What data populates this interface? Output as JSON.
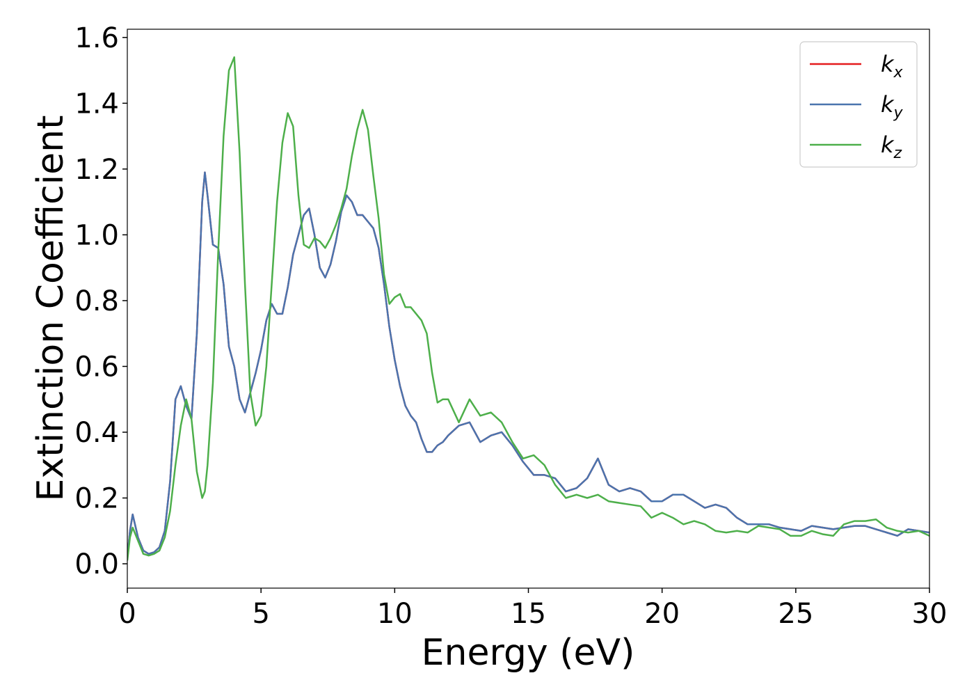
{
  "chart_data": {
    "type": "line",
    "xlabel": "Energy (eV)",
    "ylabel": "Extinction Coefficient",
    "xlim": [
      0,
      30
    ],
    "ylim": [
      -0.074,
      1.625
    ],
    "xticks": [
      0,
      5,
      10,
      15,
      20,
      25,
      30
    ],
    "yticks": [
      {
        "value": 0,
        "label": "0.0"
      },
      {
        "value": 0.2,
        "label": "0.2"
      },
      {
        "value": 0.4,
        "label": "0.4"
      },
      {
        "value": 0.6,
        "label": "0.6"
      },
      {
        "value": 0.8,
        "label": "0.8"
      },
      {
        "value": 1,
        "label": "1.0"
      },
      {
        "value": 1.2,
        "label": "1.2"
      },
      {
        "value": 1.4,
        "label": "1.4"
      },
      {
        "value": 1.6,
        "label": "1.6"
      }
    ],
    "legend": "upper right",
    "x": [
      0,
      0.1,
      0.2,
      0.4,
      0.6,
      0.8,
      1.0,
      1.2,
      1.4,
      1.6,
      1.8,
      2.0,
      2.2,
      2.4,
      2.6,
      2.8,
      2.9,
      3.0,
      3.2,
      3.4,
      3.6,
      3.8,
      4.0,
      4.2,
      4.4,
      4.6,
      4.8,
      5.0,
      5.2,
      5.4,
      5.6,
      5.8,
      6.0,
      6.2,
      6.4,
      6.6,
      6.8,
      7.0,
      7.2,
      7.4,
      7.6,
      7.8,
      8.0,
      8.2,
      8.4,
      8.6,
      8.8,
      9.0,
      9.2,
      9.4,
      9.6,
      9.8,
      10.0,
      10.2,
      10.4,
      10.6,
      10.8,
      11.0,
      11.2,
      11.4,
      11.6,
      11.8,
      12.0,
      12.4,
      12.8,
      13.2,
      13.6,
      14.0,
      14.4,
      14.8,
      15.2,
      15.6,
      16.0,
      16.4,
      16.8,
      17.2,
      17.6,
      18.0,
      18.4,
      18.8,
      19.2,
      19.6,
      20.0,
      20.4,
      20.8,
      21.2,
      21.6,
      22.0,
      22.4,
      22.8,
      23.2,
      23.6,
      24.0,
      24.4,
      24.8,
      25.2,
      25.6,
      26.0,
      26.4,
      26.8,
      27.2,
      27.6,
      28.0,
      28.4,
      28.8,
      29.2,
      29.6,
      30.0
    ],
    "series": [
      {
        "name": "kx",
        "color": "#e41a1c",
        "values": [
          0.02,
          0.1,
          0.15,
          0.08,
          0.04,
          0.03,
          0.035,
          0.05,
          0.1,
          0.25,
          0.5,
          0.54,
          0.48,
          0.44,
          0.7,
          1.1,
          1.19,
          1.12,
          0.97,
          0.96,
          0.85,
          0.66,
          0.6,
          0.5,
          0.46,
          0.52,
          0.58,
          0.65,
          0.74,
          0.79,
          0.76,
          0.76,
          0.84,
          0.94,
          1.0,
          1.06,
          1.08,
          1.0,
          0.9,
          0.87,
          0.91,
          0.98,
          1.07,
          1.12,
          1.1,
          1.06,
          1.06,
          1.04,
          1.02,
          0.96,
          0.85,
          0.72,
          0.62,
          0.54,
          0.48,
          0.45,
          0.43,
          0.38,
          0.34,
          0.34,
          0.36,
          0.37,
          0.39,
          0.42,
          0.43,
          0.37,
          0.39,
          0.4,
          0.36,
          0.31,
          0.27,
          0.27,
          0.26,
          0.22,
          0.23,
          0.26,
          0.32,
          0.24,
          0.22,
          0.23,
          0.22,
          0.19,
          0.19,
          0.21,
          0.21,
          0.19,
          0.17,
          0.18,
          0.17,
          0.14,
          0.12,
          0.12,
          0.12,
          0.11,
          0.105,
          0.1,
          0.115,
          0.11,
          0.105,
          0.11,
          0.115,
          0.115,
          0.105,
          0.095,
          0.085,
          0.105,
          0.1,
          0.095
        ]
      },
      {
        "name": "ky",
        "color": "#4a74ae",
        "values": [
          0.02,
          0.1,
          0.15,
          0.08,
          0.04,
          0.03,
          0.035,
          0.05,
          0.1,
          0.25,
          0.5,
          0.54,
          0.48,
          0.44,
          0.7,
          1.1,
          1.19,
          1.12,
          0.97,
          0.96,
          0.85,
          0.66,
          0.6,
          0.5,
          0.46,
          0.52,
          0.58,
          0.65,
          0.74,
          0.79,
          0.76,
          0.76,
          0.84,
          0.94,
          1.0,
          1.06,
          1.08,
          1.0,
          0.9,
          0.87,
          0.91,
          0.98,
          1.07,
          1.12,
          1.1,
          1.06,
          1.06,
          1.04,
          1.02,
          0.96,
          0.85,
          0.72,
          0.62,
          0.54,
          0.48,
          0.45,
          0.43,
          0.38,
          0.34,
          0.34,
          0.36,
          0.37,
          0.39,
          0.42,
          0.43,
          0.37,
          0.39,
          0.4,
          0.36,
          0.31,
          0.27,
          0.27,
          0.26,
          0.22,
          0.23,
          0.26,
          0.32,
          0.24,
          0.22,
          0.23,
          0.22,
          0.19,
          0.19,
          0.21,
          0.21,
          0.19,
          0.17,
          0.18,
          0.17,
          0.14,
          0.12,
          0.12,
          0.12,
          0.11,
          0.105,
          0.1,
          0.115,
          0.11,
          0.105,
          0.11,
          0.115,
          0.115,
          0.105,
          0.095,
          0.085,
          0.105,
          0.1,
          0.095
        ]
      },
      {
        "name": "kz",
        "color": "#4daf4a",
        "values": [
          0.01,
          0.08,
          0.11,
          0.07,
          0.03,
          0.025,
          0.03,
          0.04,
          0.08,
          0.16,
          0.3,
          0.42,
          0.5,
          0.44,
          0.28,
          0.2,
          0.22,
          0.3,
          0.55,
          0.95,
          1.3,
          1.5,
          1.54,
          1.25,
          0.85,
          0.52,
          0.42,
          0.45,
          0.6,
          0.85,
          1.1,
          1.28,
          1.37,
          1.33,
          1.12,
          0.97,
          0.96,
          0.99,
          0.98,
          0.96,
          0.99,
          1.03,
          1.08,
          1.14,
          1.24,
          1.32,
          1.38,
          1.32,
          1.18,
          1.05,
          0.88,
          0.79,
          0.81,
          0.82,
          0.78,
          0.78,
          0.76,
          0.74,
          0.7,
          0.58,
          0.49,
          0.5,
          0.5,
          0.43,
          0.5,
          0.45,
          0.46,
          0.43,
          0.37,
          0.32,
          0.33,
          0.3,
          0.24,
          0.2,
          0.21,
          0.2,
          0.21,
          0.19,
          0.185,
          0.18,
          0.175,
          0.14,
          0.155,
          0.14,
          0.12,
          0.13,
          0.12,
          0.1,
          0.095,
          0.1,
          0.095,
          0.115,
          0.11,
          0.105,
          0.085,
          0.085,
          0.1,
          0.09,
          0.085,
          0.12,
          0.13,
          0.13,
          0.135,
          0.11,
          0.1,
          0.095,
          0.1,
          0.085
        ]
      }
    ]
  }
}
